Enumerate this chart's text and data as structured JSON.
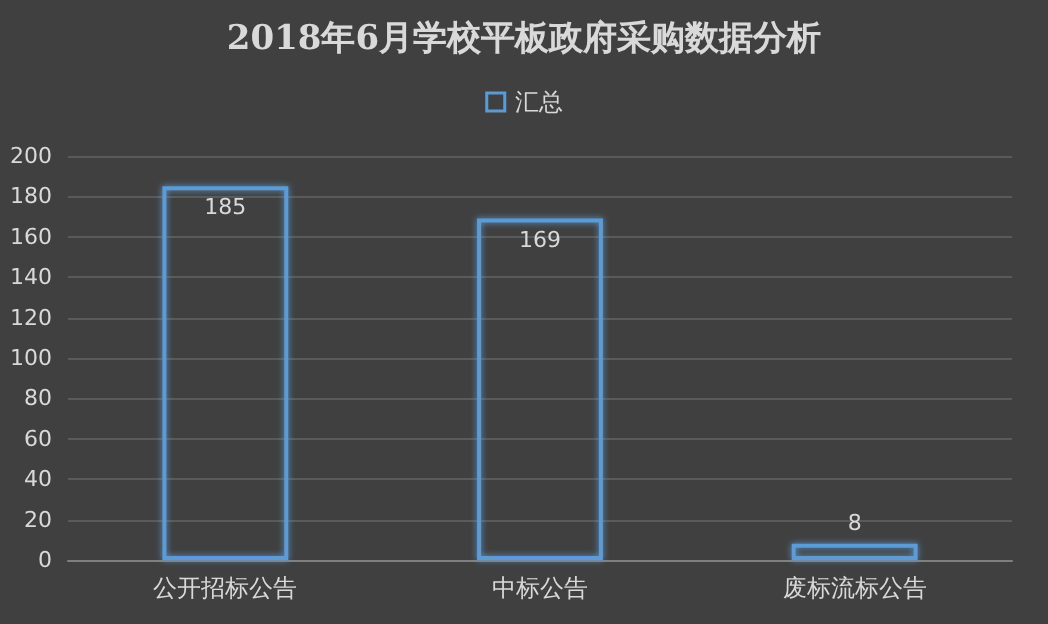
{
  "chart_data": {
    "type": "bar",
    "title": "2018年6月学校平板政府采购数据分析",
    "categories": [
      "公开招标公告",
      "中标公告",
      "废标流标公告"
    ],
    "series": [
      {
        "name": "汇总",
        "color": "#5b9bd5",
        "values": [
          185,
          169,
          8
        ]
      }
    ],
    "ylim": [
      0,
      200
    ],
    "yticks": [
      0,
      20,
      40,
      60,
      80,
      100,
      120,
      140,
      160,
      180,
      200
    ],
    "grid": "y",
    "legend": "top",
    "data_labels": true
  }
}
